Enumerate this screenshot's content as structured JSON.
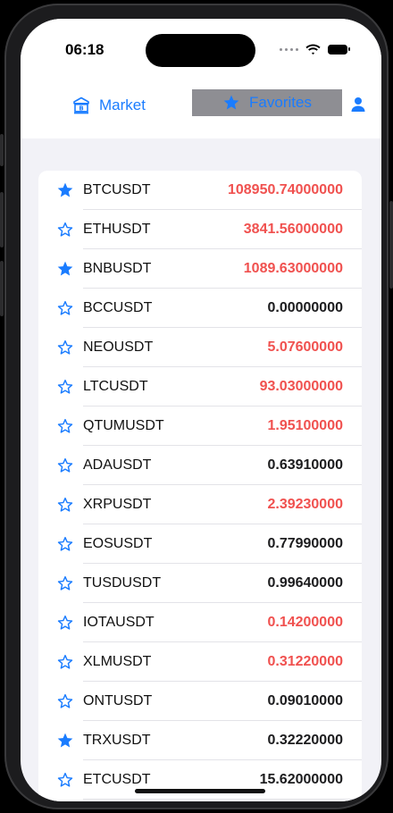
{
  "status_bar": {
    "time": "06:18"
  },
  "nav": {
    "tabs": [
      {
        "label": "Market",
        "icon": "bank-icon",
        "selected": false
      },
      {
        "label": "Favorites",
        "icon": "star-filled-icon",
        "selected": true
      }
    ],
    "profile_icon": "person-icon"
  },
  "colors": {
    "accent": "#1a7cff",
    "price_up": "#f0514f",
    "price_flat": "#1c1c1e",
    "selected_tab_bg": "#8e8e93"
  },
  "tickers": [
    {
      "symbol": "BTCUSDT",
      "price": "108950.74000000",
      "favorite": true,
      "trend": "up"
    },
    {
      "symbol": "ETHUSDT",
      "price": "3841.56000000",
      "favorite": false,
      "trend": "up"
    },
    {
      "symbol": "BNBUSDT",
      "price": "1089.63000000",
      "favorite": true,
      "trend": "up"
    },
    {
      "symbol": "BCCUSDT",
      "price": "0.00000000",
      "favorite": false,
      "trend": "flat"
    },
    {
      "symbol": "NEOUSDT",
      "price": "5.07600000",
      "favorite": false,
      "trend": "up"
    },
    {
      "symbol": "LTCUSDT",
      "price": "93.03000000",
      "favorite": false,
      "trend": "up"
    },
    {
      "symbol": "QTUMUSDT",
      "price": "1.95100000",
      "favorite": false,
      "trend": "up"
    },
    {
      "symbol": "ADAUSDT",
      "price": "0.63910000",
      "favorite": false,
      "trend": "flat"
    },
    {
      "symbol": "XRPUSDT",
      "price": "2.39230000",
      "favorite": false,
      "trend": "up"
    },
    {
      "symbol": "EOSUSDT",
      "price": "0.77990000",
      "favorite": false,
      "trend": "flat"
    },
    {
      "symbol": "TUSDUSDT",
      "price": "0.99640000",
      "favorite": false,
      "trend": "flat"
    },
    {
      "symbol": "IOTAUSDT",
      "price": "0.14200000",
      "favorite": false,
      "trend": "up"
    },
    {
      "symbol": "XLMUSDT",
      "price": "0.31220000",
      "favorite": false,
      "trend": "up"
    },
    {
      "symbol": "ONTUSDT",
      "price": "0.09010000",
      "favorite": false,
      "trend": "flat"
    },
    {
      "symbol": "TRXUSDT",
      "price": "0.32220000",
      "favorite": true,
      "trend": "flat"
    },
    {
      "symbol": "ETCUSDT",
      "price": "15.62000000",
      "favorite": false,
      "trend": "flat"
    }
  ]
}
